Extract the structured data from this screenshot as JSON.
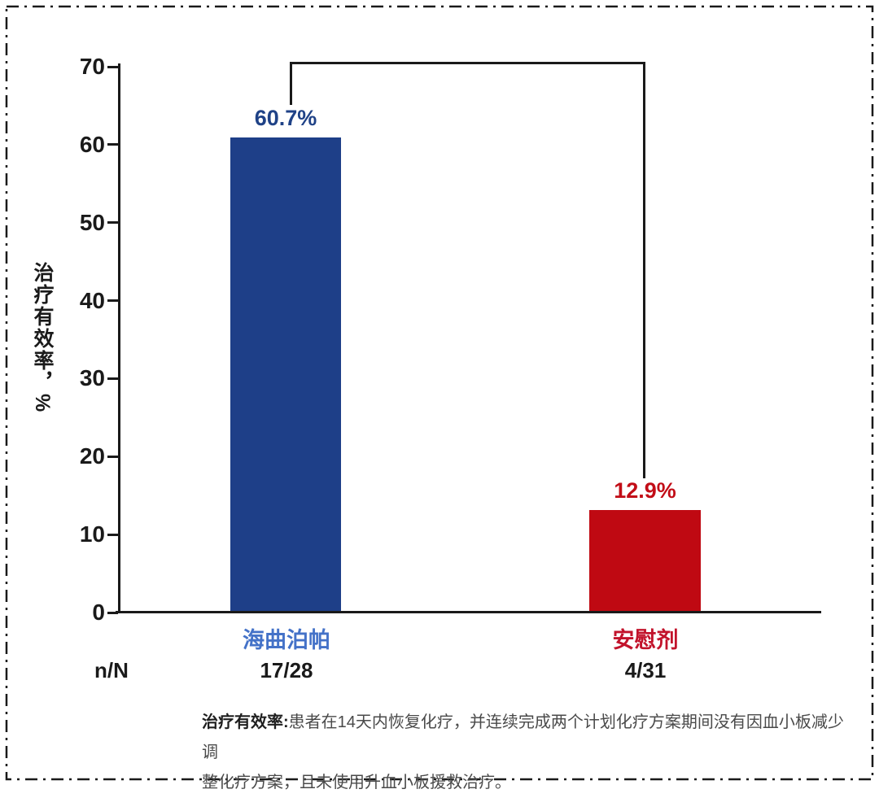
{
  "page": {
    "background": "#FFFFFF",
    "border_color": "#1A1A1A",
    "border_style": "dash-dot"
  },
  "chart_data": {
    "type": "bar",
    "title": "",
    "xlabel": "",
    "ylabel": "治疗有效率，%",
    "ylim": [
      0,
      70
    ],
    "yticks": [
      70,
      60,
      50,
      40,
      30,
      20,
      10,
      0
    ],
    "grid": false,
    "legend_position": "none",
    "categories": [
      "海曲泊帕",
      "安慰剂"
    ],
    "values": [
      60.7,
      12.9
    ],
    "value_labels": [
      "60.7%",
      "12.9%"
    ],
    "n_over_N_row_label": "n/N",
    "n_over_N": [
      "17/28",
      "4/31"
    ],
    "bar_colors": [
      "#1E3F88",
      "#BF0912"
    ],
    "value_label_colors": [
      "#1F4287",
      "#C20D17"
    ],
    "category_label_colors": [
      "#4472C8",
      "#C2132B"
    ],
    "axis_color": "#1A1A1A",
    "annotations": [
      "significance bracket connecting 海曲泊帕 bar to 安慰剂 bar"
    ]
  },
  "footnote": {
    "term": "治疗有效率:",
    "line1_rest": "患者在14天内恢复化疗，并连续完成两个计划化疗方案期间没有因血小板减少调",
    "line2": "整化疗方案，且未使用升血小板援救治疗。"
  }
}
